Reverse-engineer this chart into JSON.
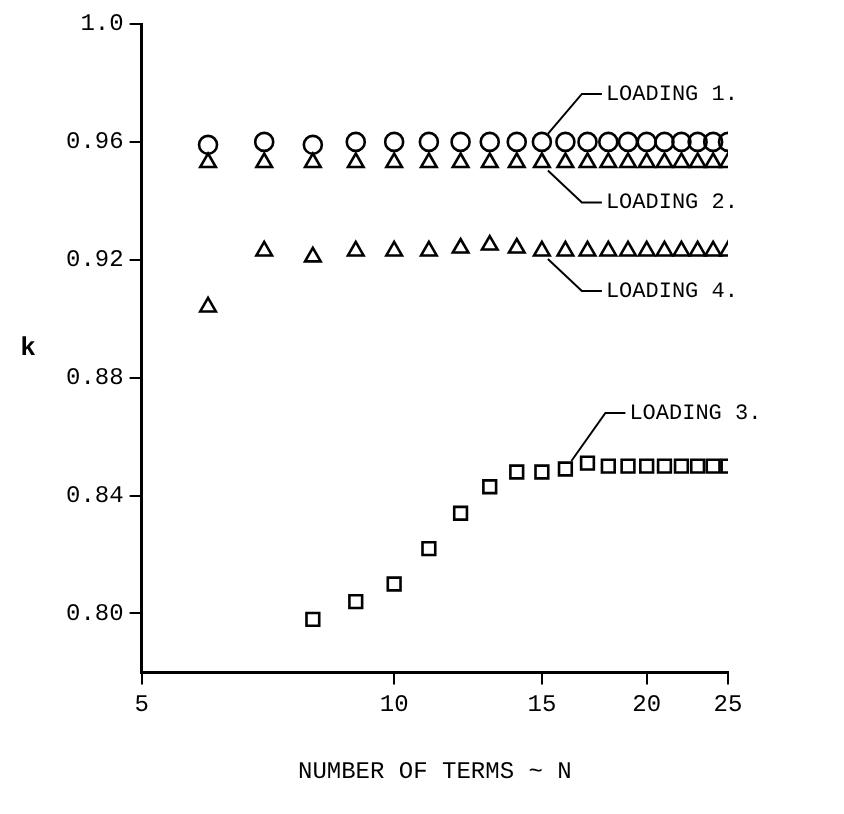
{
  "chart_data": {
    "type": "scatter",
    "xlabel": "NUMBER OF TERMS ~ N",
    "ylabel": "k",
    "log": "x",
    "xlim": [
      5,
      25
    ],
    "xticks": [
      5,
      10,
      15,
      20,
      25
    ],
    "ylim": [
      0.78,
      1.0
    ],
    "yticks": [
      {
        "value": 0.8,
        "label": "0.80"
      },
      0.84,
      0.88,
      0.92,
      0.96,
      {
        "value": 1.0,
        "label": "1.0"
      }
    ],
    "x": [
      6,
      7,
      8,
      9,
      10,
      11,
      12,
      13,
      14,
      15,
      16,
      17,
      18,
      19,
      20,
      21,
      22,
      23,
      24,
      25
    ],
    "series": [
      {
        "name": "LOADING 1.",
        "color": "#000000",
        "marker": "circle",
        "values": [
          0.959,
          0.96,
          0.959,
          0.96,
          0.96,
          0.96,
          0.96,
          0.96,
          0.96,
          0.96,
          0.96,
          0.96,
          0.96,
          0.96,
          0.96,
          0.96,
          0.96,
          0.96,
          0.96,
          0.96
        ]
      },
      {
        "name": "LOADING 2.",
        "color": "#000000",
        "marker": "triangle",
        "values": [
          0.953,
          0.953,
          0.953,
          0.953,
          0.953,
          0.953,
          0.953,
          0.953,
          0.953,
          0.953,
          0.953,
          0.953,
          0.953,
          0.953,
          0.953,
          0.953,
          0.953,
          0.953,
          0.953,
          0.953
        ]
      },
      {
        "name": "LOADING 4.",
        "color": "#000000",
        "marker": "triangle",
        "values": [
          0.904,
          0.923,
          0.921,
          0.923,
          0.923,
          0.923,
          0.924,
          0.925,
          0.924,
          0.923,
          0.923,
          0.923,
          0.923,
          0.923,
          0.923,
          0.923,
          0.923,
          0.923,
          0.923,
          0.923
        ]
      },
      {
        "name": "LOADING 3.",
        "color": "#000000",
        "marker": "square",
        "values": [
          null,
          null,
          0.798,
          0.804,
          0.81,
          0.822,
          0.834,
          0.843,
          0.848,
          0.848,
          0.849,
          0.851,
          0.85,
          0.85,
          0.85,
          0.85,
          0.85,
          0.85,
          0.85,
          0.85
        ]
      }
    ]
  }
}
